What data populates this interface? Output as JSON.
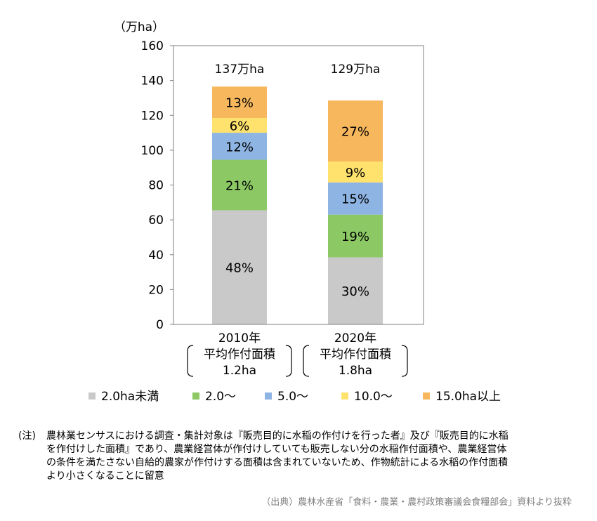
{
  "chart_data": {
    "type": "bar",
    "stacked": true,
    "unit_label": "（万ha）",
    "ylim": [
      0,
      160
    ],
    "yticks": [
      0,
      20,
      40,
      60,
      80,
      100,
      120,
      140,
      160
    ],
    "grid": false,
    "legend_position": "bottom",
    "categories": [
      {
        "year": "2010年",
        "area_label": "平均作付面積",
        "area_value": "1.2ha",
        "total_label": "137万ha",
        "total": 136.5
      },
      {
        "year": "2020年",
        "area_label": "平均作付面積",
        "area_value": "1.8ha",
        "total_label": "129万ha",
        "total": 128.5
      }
    ],
    "series": [
      {
        "name": "2.0ha未満",
        "color": "#c9c9c9",
        "values": [
          65.5,
          38.5
        ],
        "labels": [
          "48%",
          "30%"
        ]
      },
      {
        "name": "2.0～",
        "color": "#8cc965",
        "values": [
          29.0,
          24.5
        ],
        "labels": [
          "21%",
          "19%"
        ]
      },
      {
        "name": "5.0～",
        "color": "#8eb4e3",
        "values": [
          15.5,
          18.5
        ],
        "labels": [
          "12%",
          "15%"
        ]
      },
      {
        "name": "10.0～",
        "color": "#ffe26d",
        "values": [
          8.5,
          12.0
        ],
        "labels": [
          "6%",
          "9%"
        ]
      },
      {
        "name": "15.0ha以上",
        "color": "#f7b75d",
        "values": [
          18.0,
          35.0
        ],
        "labels": [
          "13%",
          "27%"
        ]
      }
    ]
  },
  "note": {
    "tag": "(注)",
    "lines": [
      "農林業センサスにおける調査・集計対象は『販売目的に水稲の作付けを行った者』及び『販売目的に水稲",
      "を作付けした面積』であり、農業経営体が作付けしていても販売しない分の水稲作付面積や、農業経営体",
      "の条件を満たさない自給的農家が作付けする面積は含まれていないため、作物統計による水稲の作付面積",
      "より小さくなることに留意"
    ]
  },
  "source": "（出典）農林水産省「食料・農業・農村政策審議会食糧部会」資料より抜粋"
}
